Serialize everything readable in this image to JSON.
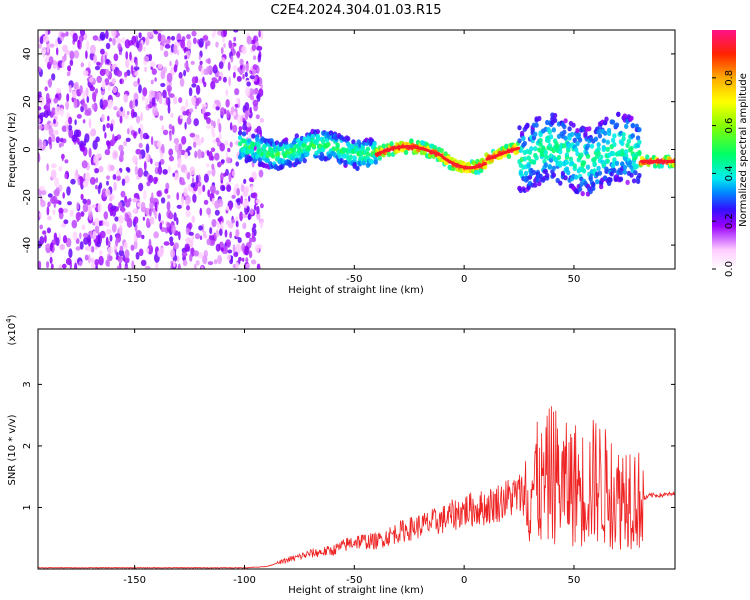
{
  "title": "C2E4.2024.304.01.03.R15",
  "chart_data": [
    {
      "type": "heatmap",
      "name": "spectrogram",
      "xlabel": "Height of straight line (km)",
      "ylabel": "Frequency (Hz)",
      "xlim": [
        -194,
        96
      ],
      "ylim": [
        -50,
        50
      ],
      "xticks": [
        -150,
        -100,
        -50,
        0,
        50
      ],
      "yticks": [
        -40,
        -20,
        0,
        20,
        40
      ],
      "colorbar": {
        "label": "Normalized spectral amplitude",
        "range": [
          0,
          1
        ],
        "ticks": [
          0.0,
          0.2,
          0.4,
          0.6,
          0.8
        ],
        "tick_labels": [
          "0.0",
          "0.2",
          "0.4",
          "0.6",
          "0.8"
        ]
      },
      "regions": [
        {
          "x_range": [
            -194,
            -100
          ],
          "description": "broadband scattered noise",
          "amplitude": 0.2
        },
        {
          "x_range": [
            -100,
            -40
          ],
          "center_frequency": 0,
          "amplitude": 0.45
        },
        {
          "x_range": [
            -40,
            25
          ],
          "center_frequency": -2,
          "amplitude": 0.95
        },
        {
          "x_range": [
            25,
            80
          ],
          "center_frequency": -2,
          "amplitude": 0.4
        },
        {
          "x_range": [
            80,
            96
          ],
          "center_frequency": -5,
          "amplitude": 0.95
        }
      ]
    },
    {
      "type": "line",
      "name": "snr",
      "xlabel": "Height of straight line (km)",
      "ylabel": "SNR (10 * v/v)",
      "scale_label": "(x10",
      "scale_exp": "4",
      "scale_close": ")",
      "xlim": [
        -194,
        96
      ],
      "ylim": [
        0,
        3.9
      ],
      "xticks": [
        -150,
        -100,
        -50,
        0,
        50
      ],
      "yticks": [
        1,
        2,
        3
      ],
      "series": [
        {
          "name": "SNR",
          "color": "#ee2222",
          "x": [
            -194,
            -150,
            -100,
            -90,
            -80,
            -70,
            -60,
            -50,
            -40,
            -30,
            -20,
            -10,
            0,
            10,
            20,
            28,
            32,
            36,
            40,
            45,
            50,
            55,
            60,
            65,
            70,
            75,
            80,
            85,
            90,
            96
          ],
          "y": [
            0.02,
            0.02,
            0.02,
            0.04,
            0.15,
            0.25,
            0.3,
            0.45,
            0.45,
            0.6,
            0.7,
            0.8,
            0.95,
            1.0,
            1.15,
            1.25,
            1.4,
            1.3,
            1.6,
            1.35,
            1.4,
            1.3,
            1.45,
            1.3,
            1.15,
            1.3,
            1.1,
            1.2,
            1.2,
            1.22
          ]
        }
      ]
    }
  ]
}
